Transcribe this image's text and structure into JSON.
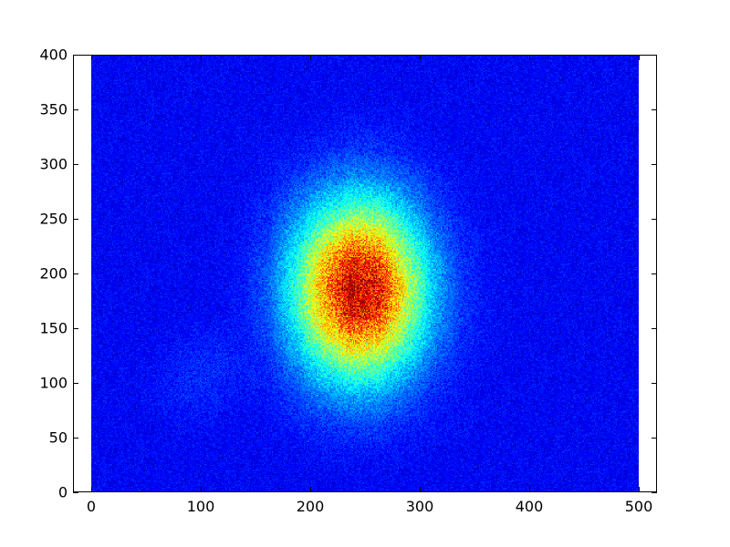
{
  "chart_data": {
    "type": "heatmap",
    "title": "",
    "xlabel": "",
    "ylabel": "",
    "colormap": "jet",
    "value_scale": "normalized intensity 0-1 (no colorbar shown)",
    "xlim": [
      -17,
      517
    ],
    "ylim": [
      0,
      400
    ],
    "image_extent": {
      "x": [
        0,
        500
      ],
      "y": [
        0,
        400
      ]
    },
    "grid": false,
    "x_ticks": [
      "0",
      "100",
      "200",
      "300",
      "400",
      "500"
    ],
    "y_ticks": [
      "0",
      "50",
      "100",
      "150",
      "200",
      "250",
      "300",
      "350",
      "400"
    ],
    "x_centers": [
      12.5,
      37.5,
      62.5,
      87.5,
      112.5,
      137.5,
      162.5,
      187.5,
      212.5,
      237.5,
      262.5,
      287.5,
      312.5,
      337.5,
      362.5,
      387.5,
      412.5,
      437.5,
      462.5,
      487.5
    ],
    "y_centers": [
      387.5,
      362.5,
      337.5,
      312.5,
      287.5,
      262.5,
      237.5,
      212.5,
      187.5,
      162.5,
      137.5,
      112.5,
      87.5,
      62.5,
      37.5,
      12.5
    ],
    "values": [
      [
        0.12,
        0.12,
        0.12,
        0.12,
        0.12,
        0.12,
        0.12,
        0.12,
        0.12,
        0.12,
        0.12,
        0.12,
        0.12,
        0.12,
        0.12,
        0.12,
        0.12,
        0.12,
        0.12,
        0.12
      ],
      [
        0.12,
        0.12,
        0.12,
        0.12,
        0.12,
        0.12,
        0.12,
        0.12,
        0.12,
        0.12,
        0.12,
        0.12,
        0.12,
        0.12,
        0.12,
        0.12,
        0.12,
        0.12,
        0.12,
        0.12
      ],
      [
        0.12,
        0.12,
        0.12,
        0.12,
        0.12,
        0.12,
        0.12,
        0.12,
        0.13,
        0.14,
        0.14,
        0.13,
        0.12,
        0.12,
        0.12,
        0.12,
        0.12,
        0.12,
        0.12,
        0.12
      ],
      [
        0.12,
        0.12,
        0.12,
        0.12,
        0.12,
        0.12,
        0.13,
        0.14,
        0.16,
        0.18,
        0.17,
        0.15,
        0.13,
        0.12,
        0.12,
        0.12,
        0.12,
        0.12,
        0.12,
        0.12
      ],
      [
        0.12,
        0.12,
        0.12,
        0.12,
        0.12,
        0.12,
        0.14,
        0.18,
        0.23,
        0.27,
        0.26,
        0.21,
        0.16,
        0.13,
        0.12,
        0.12,
        0.12,
        0.12,
        0.12,
        0.12
      ],
      [
        0.12,
        0.12,
        0.12,
        0.12,
        0.12,
        0.13,
        0.16,
        0.24,
        0.35,
        0.43,
        0.41,
        0.3,
        0.19,
        0.14,
        0.12,
        0.12,
        0.12,
        0.12,
        0.12,
        0.12
      ],
      [
        0.12,
        0.12,
        0.12,
        0.12,
        0.12,
        0.13,
        0.18,
        0.32,
        0.5,
        0.64,
        0.61,
        0.42,
        0.25,
        0.16,
        0.13,
        0.12,
        0.12,
        0.12,
        0.12,
        0.12
      ],
      [
        0.12,
        0.12,
        0.12,
        0.12,
        0.12,
        0.14,
        0.21,
        0.39,
        0.66,
        0.85,
        0.8,
        0.54,
        0.3,
        0.17,
        0.13,
        0.12,
        0.12,
        0.12,
        0.12,
        0.12
      ],
      [
        0.12,
        0.12,
        0.12,
        0.12,
        0.12,
        0.14,
        0.22,
        0.43,
        0.73,
        0.95,
        0.89,
        0.6,
        0.32,
        0.18,
        0.13,
        0.12,
        0.12,
        0.12,
        0.12,
        0.12
      ],
      [
        0.12,
        0.12,
        0.12,
        0.12,
        0.12,
        0.14,
        0.21,
        0.41,
        0.68,
        0.88,
        0.83,
        0.56,
        0.3,
        0.18,
        0.13,
        0.12,
        0.12,
        0.12,
        0.12,
        0.12
      ],
      [
        0.12,
        0.12,
        0.12,
        0.14,
        0.15,
        0.14,
        0.19,
        0.33,
        0.54,
        0.69,
        0.65,
        0.45,
        0.26,
        0.16,
        0.13,
        0.12,
        0.12,
        0.12,
        0.12,
        0.12
      ],
      [
        0.12,
        0.12,
        0.13,
        0.16,
        0.17,
        0.15,
        0.16,
        0.25,
        0.38,
        0.47,
        0.44,
        0.32,
        0.2,
        0.15,
        0.12,
        0.12,
        0.12,
        0.12,
        0.12,
        0.12
      ],
      [
        0.12,
        0.12,
        0.14,
        0.16,
        0.15,
        0.13,
        0.14,
        0.19,
        0.25,
        0.29,
        0.28,
        0.22,
        0.16,
        0.13,
        0.12,
        0.12,
        0.12,
        0.12,
        0.12,
        0.12
      ],
      [
        0.12,
        0.12,
        0.12,
        0.13,
        0.13,
        0.12,
        0.13,
        0.15,
        0.17,
        0.19,
        0.19,
        0.16,
        0.14,
        0.13,
        0.12,
        0.12,
        0.12,
        0.12,
        0.12,
        0.12
      ],
      [
        0.12,
        0.12,
        0.12,
        0.12,
        0.12,
        0.12,
        0.12,
        0.12,
        0.14,
        0.14,
        0.14,
        0.13,
        0.12,
        0.12,
        0.12,
        0.12,
        0.12,
        0.12,
        0.12,
        0.12
      ],
      [
        0.12,
        0.12,
        0.12,
        0.12,
        0.12,
        0.12,
        0.12,
        0.12,
        0.12,
        0.12,
        0.12,
        0.12,
        0.12,
        0.12,
        0.12,
        0.12,
        0.12,
        0.12,
        0.12,
        0.12
      ]
    ]
  }
}
